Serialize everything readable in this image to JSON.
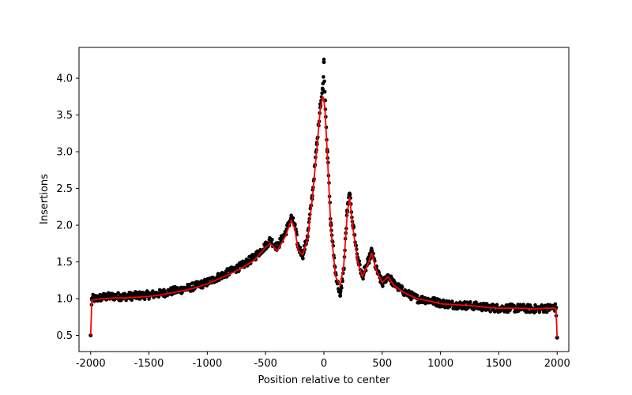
{
  "chart_data": {
    "type": "scatter",
    "xlabel": "Position relative to center",
    "ylabel": "Insertions",
    "xlim": [
      -2100,
      2100
    ],
    "ylim": [
      0.28,
      4.42
    ],
    "xticks": [
      -2000,
      -1500,
      -1000,
      -500,
      0,
      500,
      1000,
      1500,
      2000
    ],
    "xtick_labels": [
      "-2000",
      "-1500",
      "-1000",
      "-500",
      "0",
      "500",
      "1000",
      "1500",
      "2000"
    ],
    "yticks": [
      0.5,
      1.0,
      1.5,
      2.0,
      2.5,
      3.0,
      3.5,
      4.0
    ],
    "ytick_labels": [
      "0.5",
      "1.0",
      "1.5",
      "2.0",
      "2.5",
      "3.0",
      "3.5",
      "4.0"
    ],
    "grid": false,
    "legend": "none",
    "series": [
      {
        "kind": "scatter",
        "color": "#000000",
        "points": [
          [
            -2000,
            0.5
          ],
          [
            -1990,
            1.0
          ],
          [
            -1950,
            1.0
          ],
          [
            -1900,
            1.02
          ],
          [
            -1800,
            1.03
          ],
          [
            -1700,
            1.03
          ],
          [
            -1600,
            1.04
          ],
          [
            -1500,
            1.05
          ],
          [
            -1400,
            1.07
          ],
          [
            -1300,
            1.1
          ],
          [
            -1200,
            1.13
          ],
          [
            -1100,
            1.17
          ],
          [
            -1000,
            1.22
          ],
          [
            -900,
            1.3
          ],
          [
            -800,
            1.37
          ],
          [
            -700,
            1.45
          ],
          [
            -600,
            1.56
          ],
          [
            -500,
            1.72
          ],
          [
            -460,
            1.8
          ],
          [
            -400,
            1.7
          ],
          [
            -330,
            1.9
          ],
          [
            -280,
            2.1
          ],
          [
            -250,
            2.0
          ],
          [
            -220,
            1.7
          ],
          [
            -180,
            1.6
          ],
          [
            -140,
            1.85
          ],
          [
            -100,
            2.4
          ],
          [
            -60,
            3.1
          ],
          [
            -30,
            3.65
          ],
          [
            -10,
            3.85
          ],
          [
            0,
            4.22
          ],
          [
            10,
            3.7
          ],
          [
            30,
            3.0
          ],
          [
            60,
            2.0
          ],
          [
            100,
            1.35
          ],
          [
            140,
            1.04
          ],
          [
            170,
            1.4
          ],
          [
            200,
            2.2
          ],
          [
            220,
            2.43
          ],
          [
            250,
            2.0
          ],
          [
            290,
            1.55
          ],
          [
            330,
            1.3
          ],
          [
            380,
            1.5
          ],
          [
            410,
            1.65
          ],
          [
            450,
            1.4
          ],
          [
            500,
            1.2
          ],
          [
            550,
            1.32
          ],
          [
            600,
            1.2
          ],
          [
            700,
            1.08
          ],
          [
            800,
            1.0
          ],
          [
            900,
            0.98
          ],
          [
            1000,
            0.94
          ],
          [
            1100,
            0.92
          ],
          [
            1200,
            0.91
          ],
          [
            1300,
            0.9
          ],
          [
            1400,
            0.88
          ],
          [
            1500,
            0.87
          ],
          [
            1600,
            0.87
          ],
          [
            1700,
            0.87
          ],
          [
            1800,
            0.86
          ],
          [
            1900,
            0.87
          ],
          [
            1990,
            0.88
          ],
          [
            2000,
            0.47
          ]
        ]
      },
      {
        "kind": "line",
        "color": "#ff0000",
        "points": [
          [
            -2000,
            0.5
          ],
          [
            -1990,
            0.98
          ],
          [
            -1950,
            0.99
          ],
          [
            -1900,
            1.0
          ],
          [
            -1800,
            1.01
          ],
          [
            -1700,
            1.01
          ],
          [
            -1600,
            1.02
          ],
          [
            -1500,
            1.03
          ],
          [
            -1400,
            1.05
          ],
          [
            -1300,
            1.08
          ],
          [
            -1200,
            1.11
          ],
          [
            -1100,
            1.15
          ],
          [
            -1000,
            1.2
          ],
          [
            -900,
            1.27
          ],
          [
            -800,
            1.34
          ],
          [
            -700,
            1.42
          ],
          [
            -600,
            1.52
          ],
          [
            -500,
            1.7
          ],
          [
            -460,
            1.75
          ],
          [
            -400,
            1.65
          ],
          [
            -330,
            1.85
          ],
          [
            -280,
            2.07
          ],
          [
            -250,
            1.95
          ],
          [
            -220,
            1.65
          ],
          [
            -180,
            1.6
          ],
          [
            -140,
            1.82
          ],
          [
            -100,
            2.35
          ],
          [
            -60,
            3.05
          ],
          [
            -30,
            3.6
          ],
          [
            -10,
            3.75
          ],
          [
            0,
            3.7
          ],
          [
            10,
            3.55
          ],
          [
            30,
            2.95
          ],
          [
            60,
            1.95
          ],
          [
            100,
            1.3
          ],
          [
            140,
            1.18
          ],
          [
            170,
            1.45
          ],
          [
            200,
            2.15
          ],
          [
            220,
            2.38
          ],
          [
            250,
            1.95
          ],
          [
            290,
            1.5
          ],
          [
            330,
            1.3
          ],
          [
            380,
            1.48
          ],
          [
            410,
            1.62
          ],
          [
            450,
            1.38
          ],
          [
            500,
            1.22
          ],
          [
            550,
            1.3
          ],
          [
            600,
            1.18
          ],
          [
            700,
            1.07
          ],
          [
            800,
            1.0
          ],
          [
            900,
            0.97
          ],
          [
            1000,
            0.93
          ],
          [
            1100,
            0.92
          ],
          [
            1200,
            0.91
          ],
          [
            1300,
            0.9
          ],
          [
            1400,
            0.88
          ],
          [
            1500,
            0.87
          ],
          [
            1600,
            0.87
          ],
          [
            1700,
            0.87
          ],
          [
            1800,
            0.86
          ],
          [
            1900,
            0.87
          ],
          [
            1990,
            0.87
          ],
          [
            2000,
            0.47
          ]
        ]
      }
    ]
  }
}
